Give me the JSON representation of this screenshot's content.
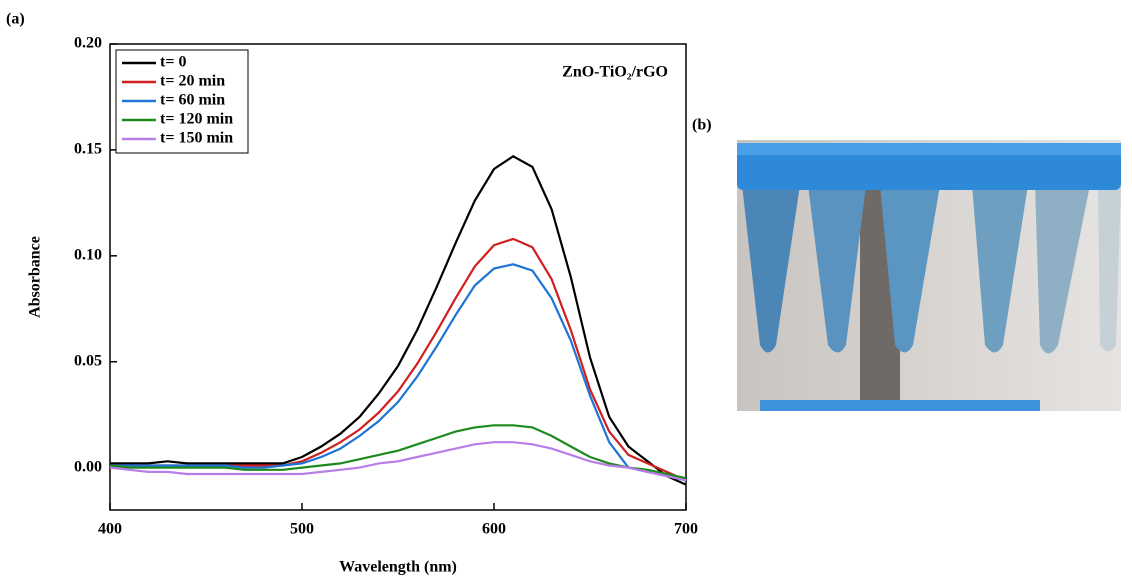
{
  "panel_labels": [
    "(a)",
    "(b)"
  ],
  "chart_data": {
    "type": "line",
    "annotation": "ZnO-TiO₂/rGO",
    "x_label": "Wavelength (nm)",
    "y_label": "Absorbance",
    "x": [
      400,
      410,
      420,
      430,
      440,
      450,
      460,
      470,
      480,
      490,
      500,
      510,
      520,
      530,
      540,
      550,
      560,
      570,
      580,
      590,
      600,
      610,
      620,
      630,
      640,
      650,
      660,
      670,
      680,
      690,
      700
    ],
    "series": [
      {
        "name": "t= 0",
        "color": "#000000",
        "values": [
          0.002,
          0.002,
          0.002,
          0.003,
          0.002,
          0.002,
          0.002,
          0.002,
          0.002,
          0.002,
          0.005,
          0.01,
          0.016,
          0.024,
          0.035,
          0.048,
          0.065,
          0.085,
          0.106,
          0.126,
          0.141,
          0.147,
          0.142,
          0.122,
          0.09,
          0.052,
          0.024,
          0.01,
          0.003,
          -0.004,
          -0.008
        ]
      },
      {
        "name": "t= 20 min",
        "color": "#d01f1f",
        "values": [
          0.001,
          0.001,
          0.001,
          0.001,
          0.001,
          0.001,
          0.001,
          0.001,
          0.001,
          0.001,
          0.003,
          0.007,
          0.012,
          0.018,
          0.026,
          0.036,
          0.049,
          0.064,
          0.08,
          0.095,
          0.105,
          0.108,
          0.104,
          0.089,
          0.065,
          0.037,
          0.017,
          0.006,
          0.002,
          -0.002,
          -0.006
        ]
      },
      {
        "name": "t= 60 min",
        "color": "#1f74d6",
        "values": [
          0.001,
          0.001,
          0.001,
          0.001,
          0.001,
          0.001,
          0.001,
          0.0,
          0.0,
          0.001,
          0.002,
          0.005,
          0.009,
          0.015,
          0.022,
          0.031,
          0.043,
          0.057,
          0.072,
          0.086,
          0.094,
          0.096,
          0.093,
          0.08,
          0.06,
          0.034,
          0.012,
          0.0,
          -0.002,
          -0.004,
          -0.006
        ]
      },
      {
        "name": "t= 120 min",
        "color": "#1e8a1e",
        "values": [
          0.001,
          0.0,
          0.0,
          0.0,
          0.0,
          0.0,
          0.0,
          -0.001,
          -0.001,
          -0.001,
          0.0,
          0.001,
          0.002,
          0.004,
          0.006,
          0.008,
          0.011,
          0.014,
          0.017,
          0.019,
          0.02,
          0.02,
          0.019,
          0.015,
          0.01,
          0.005,
          0.002,
          0.0,
          -0.001,
          -0.003,
          -0.005
        ]
      },
      {
        "name": "t= 150 min",
        "color": "#b87ee8",
        "values": [
          0.0,
          -0.001,
          -0.002,
          -0.002,
          -0.003,
          -0.003,
          -0.003,
          -0.003,
          -0.003,
          -0.003,
          -0.003,
          -0.002,
          -0.001,
          0.0,
          0.002,
          0.003,
          0.005,
          0.007,
          0.009,
          0.011,
          0.012,
          0.012,
          0.011,
          0.009,
          0.006,
          0.003,
          0.001,
          0.0,
          -0.002,
          -0.004,
          -0.006
        ]
      }
    ],
    "xlim": [
      400,
      700
    ],
    "xticks": [
      400,
      500,
      600,
      700
    ],
    "ylim": [
      -0.02,
      0.2
    ],
    "yticks": [
      {
        "value": 0,
        "label": "0.00"
      },
      0.05,
      {
        "value": 0.1,
        "label": "0.10"
      },
      0.15,
      {
        "value": 0.2,
        "label": "0.20"
      }
    ],
    "legend": "upper left"
  }
}
